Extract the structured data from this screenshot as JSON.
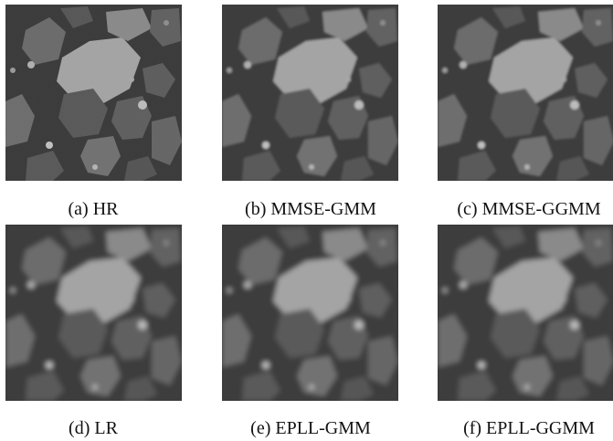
{
  "figure": {
    "panels": [
      {
        "caption": "(a) HR"
      },
      {
        "caption": "(b) MMSE-GMM"
      },
      {
        "caption": "(c) MMSE-GGMM"
      },
      {
        "caption": "(d) LR"
      },
      {
        "caption": "(e) EPLL-GMM"
      },
      {
        "caption": "(f) EPLL-GGMM"
      }
    ]
  },
  "colors": {
    "background": "#3c3c3c",
    "grain_dark": "#545454",
    "grain_mid": "#6a6a6a",
    "grain_light": "#9a9a9a",
    "central_grain": "#a8a8a8"
  }
}
